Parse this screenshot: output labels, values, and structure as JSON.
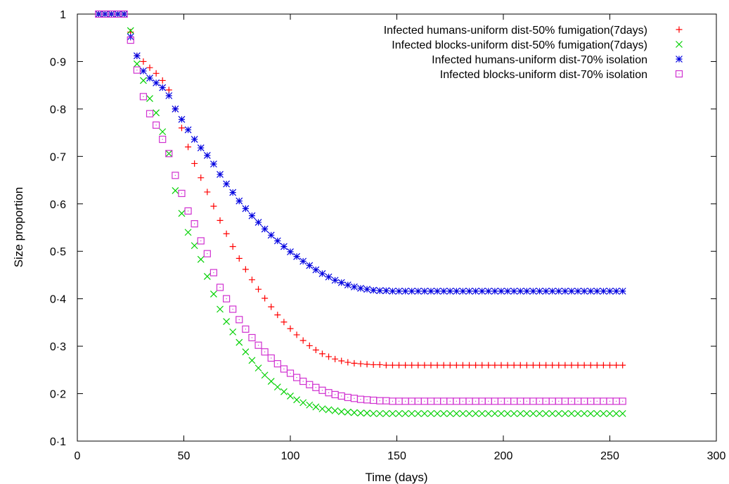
{
  "chart_data": {
    "type": "scatter",
    "title": "",
    "xlabel": "Time (days)",
    "ylabel": "Size proportion",
    "xlim": [
      0,
      300
    ],
    "ylim": [
      0.1,
      1
    ],
    "x_ticks": [
      "0",
      "50",
      "100",
      "150",
      "200",
      "250",
      "300"
    ],
    "y_ticks": [
      "0·1",
      "0·2",
      "0·3",
      "0·4",
      "0·5",
      "0·6",
      "0·7",
      "0·8",
      "0·9",
      "1"
    ],
    "grid": false,
    "legend_position": "top-right",
    "x_start": 10,
    "x_step": 3,
    "series": [
      {
        "name": "Infected humans-uniform dist-50% fumigation(7days)",
        "marker": "plus",
        "color": "#ff0000",
        "values": [
          1.0,
          1.0,
          1.0,
          1.0,
          1.0,
          0.962,
          0.912,
          0.9,
          0.887,
          0.875,
          0.86,
          0.84,
          0.8,
          0.76,
          0.72,
          0.685,
          0.655,
          0.625,
          0.595,
          0.565,
          0.537,
          0.51,
          0.485,
          0.462,
          0.44,
          0.42,
          0.401,
          0.383,
          0.366,
          0.351,
          0.337,
          0.324,
          0.312,
          0.301,
          0.292,
          0.284,
          0.278,
          0.273,
          0.269,
          0.266,
          0.264,
          0.263,
          0.262,
          0.261,
          0.261,
          0.26,
          0.26,
          0.26,
          0.26,
          0.26,
          0.26,
          0.26,
          0.26,
          0.26,
          0.26,
          0.26,
          0.26,
          0.26,
          0.26,
          0.26,
          0.26,
          0.26,
          0.26,
          0.26,
          0.26,
          0.26,
          0.26,
          0.26,
          0.26,
          0.26,
          0.26,
          0.26,
          0.26,
          0.26,
          0.26,
          0.26,
          0.26,
          0.26,
          0.26,
          0.26,
          0.26,
          0.26,
          0.26
        ]
      },
      {
        "name": "Infected blocks-uniform dist-50% fumigation(7days)",
        "marker": "cross",
        "color": "#00d000",
        "values": [
          1.0,
          1.0,
          1.0,
          1.0,
          1.0,
          0.965,
          0.895,
          0.86,
          0.822,
          0.792,
          0.752,
          0.706,
          0.628,
          0.58,
          0.54,
          0.512,
          0.483,
          0.447,
          0.41,
          0.378,
          0.352,
          0.33,
          0.308,
          0.288,
          0.27,
          0.254,
          0.239,
          0.226,
          0.214,
          0.204,
          0.195,
          0.187,
          0.181,
          0.176,
          0.172,
          0.168,
          0.166,
          0.164,
          0.162,
          0.161,
          0.16,
          0.159,
          0.159,
          0.158,
          0.158,
          0.158,
          0.158,
          0.158,
          0.158,
          0.158,
          0.158,
          0.158,
          0.158,
          0.158,
          0.158,
          0.158,
          0.158,
          0.158,
          0.158,
          0.158,
          0.158,
          0.158,
          0.158,
          0.158,
          0.158,
          0.158,
          0.158,
          0.158,
          0.158,
          0.158,
          0.158,
          0.158,
          0.158,
          0.158,
          0.158,
          0.158,
          0.158,
          0.158,
          0.158,
          0.158,
          0.158,
          0.158,
          0.158
        ]
      },
      {
        "name": "Infected humans-uniform dist-70% isolation",
        "marker": "star",
        "color": "#0000e0",
        "values": [
          1.0,
          1.0,
          1.0,
          1.0,
          1.0,
          0.952,
          0.912,
          0.88,
          0.865,
          0.855,
          0.845,
          0.828,
          0.8,
          0.778,
          0.756,
          0.736,
          0.718,
          0.702,
          0.684,
          0.662,
          0.642,
          0.624,
          0.606,
          0.59,
          0.575,
          0.561,
          0.547,
          0.534,
          0.522,
          0.51,
          0.499,
          0.489,
          0.479,
          0.47,
          0.461,
          0.453,
          0.446,
          0.439,
          0.434,
          0.429,
          0.425,
          0.422,
          0.42,
          0.418,
          0.417,
          0.417,
          0.416,
          0.416,
          0.416,
          0.416,
          0.416,
          0.416,
          0.416,
          0.416,
          0.416,
          0.416,
          0.416,
          0.416,
          0.416,
          0.416,
          0.416,
          0.416,
          0.416,
          0.416,
          0.416,
          0.416,
          0.416,
          0.416,
          0.416,
          0.416,
          0.416,
          0.416,
          0.416,
          0.416,
          0.416,
          0.416,
          0.416,
          0.416,
          0.416,
          0.416,
          0.416,
          0.416,
          0.416
        ]
      },
      {
        "name": "Infected blocks-uniform dist-70% isolation",
        "marker": "square",
        "color": "#d030d0",
        "values": [
          1.0,
          1.0,
          1.0,
          1.0,
          1.0,
          0.945,
          0.882,
          0.826,
          0.79,
          0.766,
          0.736,
          0.706,
          0.66,
          0.622,
          0.585,
          0.558,
          0.522,
          0.495,
          0.455,
          0.424,
          0.4,
          0.378,
          0.356,
          0.336,
          0.318,
          0.302,
          0.288,
          0.275,
          0.263,
          0.252,
          0.243,
          0.234,
          0.226,
          0.219,
          0.213,
          0.207,
          0.202,
          0.198,
          0.195,
          0.192,
          0.19,
          0.188,
          0.187,
          0.186,
          0.185,
          0.185,
          0.184,
          0.184,
          0.184,
          0.184,
          0.184,
          0.184,
          0.184,
          0.184,
          0.184,
          0.184,
          0.184,
          0.184,
          0.184,
          0.184,
          0.184,
          0.184,
          0.184,
          0.184,
          0.184,
          0.184,
          0.184,
          0.184,
          0.184,
          0.184,
          0.184,
          0.184,
          0.184,
          0.184,
          0.184,
          0.184,
          0.184,
          0.184,
          0.184,
          0.184,
          0.184,
          0.184,
          0.184
        ]
      }
    ]
  }
}
